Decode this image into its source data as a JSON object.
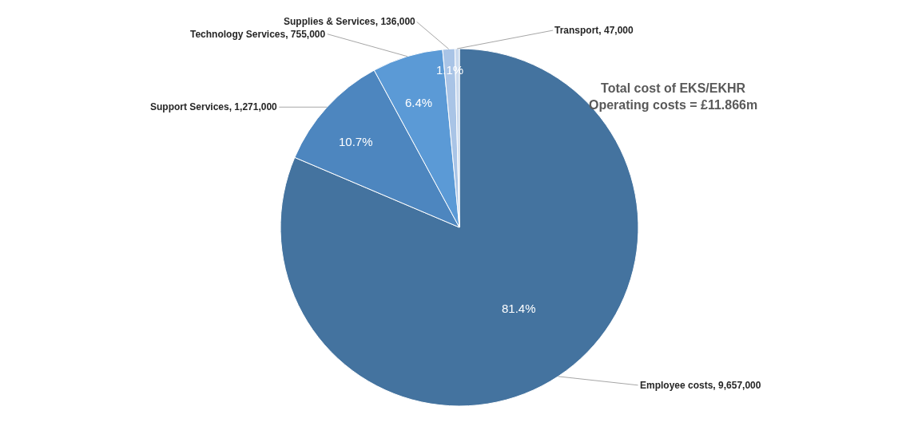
{
  "chart_data": {
    "type": "pie",
    "categories": [
      "Employee costs, 9,657,000",
      "Support Services, 1,271,000",
      "Technology Services, 755,000",
      "Supplies & Services, 136,000",
      "Transport, 47,000"
    ],
    "values": [
      81.4,
      10.7,
      6.4,
      1.1,
      0.4
    ],
    "colors": [
      "#44739f",
      "#4d86bf",
      "#5b9ad6",
      "#a9c4e6",
      "#c9d9ee"
    ],
    "value_labels": [
      "81.4%",
      "10.7%",
      "6.4%",
      "1.1%",
      null
    ],
    "legend": false,
    "annotations": [
      "Total cost of EKS/EKHR\nOperating costs = £11.866m"
    ]
  }
}
